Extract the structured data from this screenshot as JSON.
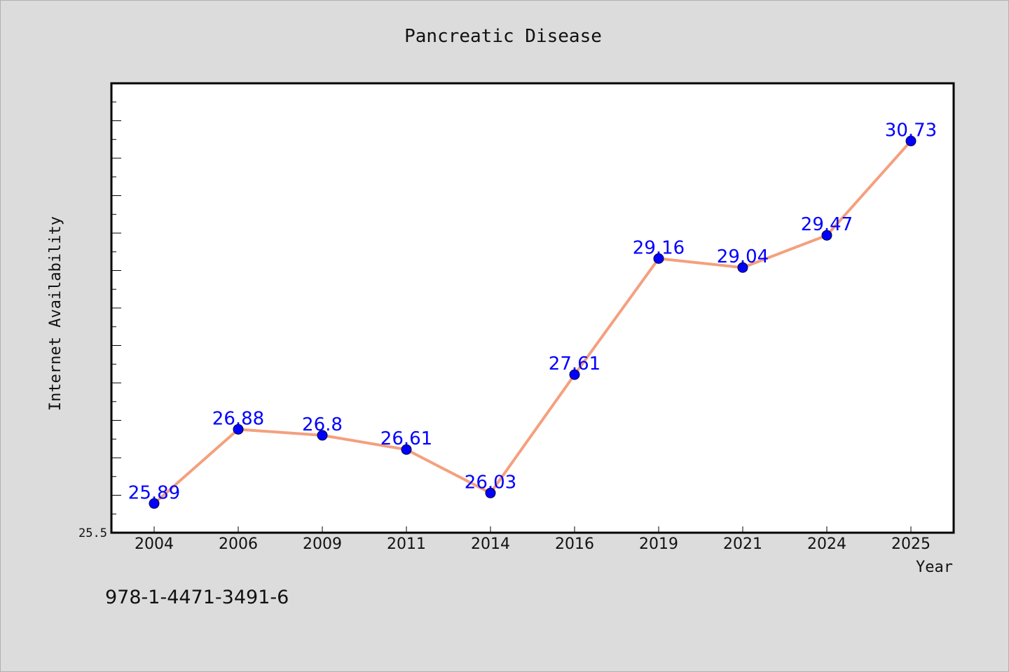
{
  "isbn": "978-1-4471-3491-6",
  "chart_data": {
    "type": "line",
    "title": "Pancreatic Disease",
    "xlabel": "Year",
    "ylabel": "Internet Availability",
    "categories": [
      "2004",
      "2006",
      "2009",
      "2011",
      "2014",
      "2016",
      "2019",
      "2021",
      "2024",
      "2025"
    ],
    "series": [
      {
        "values": [
          25.89,
          26.88,
          26.8,
          26.61,
          26.03,
          27.61,
          29.16,
          29.04,
          29.47,
          30.73
        ],
        "data_labels": [
          "25.89",
          "26.88",
          "26.8",
          "26.61",
          "26.03",
          "27.61",
          "29.16",
          "29.04",
          "29.47",
          "30.73"
        ]
      }
    ],
    "ylim": [
      25.5,
      31.5
    ],
    "y_tick_labels": [
      "25.5"
    ],
    "grid": false,
    "legend": "none",
    "colors": {
      "line": "#f4a07e",
      "marker": "#0000ff",
      "data_label": "#0000ff",
      "background": "#dcdcdc",
      "plot_background": "#ffffff"
    }
  }
}
